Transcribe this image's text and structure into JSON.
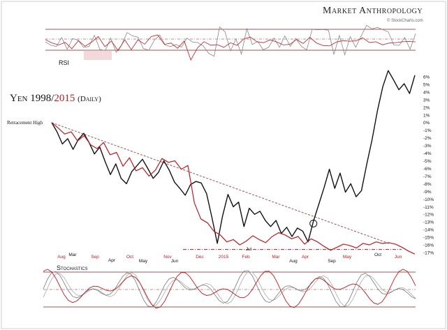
{
  "brand": {
    "name": "Market Anthropology",
    "source": "© StockCharts.com"
  },
  "title": {
    "part1": "Yen 1998/",
    "part2": "2015",
    "part3": "(Daily)"
  },
  "chart_data": {
    "type": "line",
    "panels": [
      "RSI",
      "Price",
      "Stochastics"
    ],
    "rsi_label": "RSI",
    "stoch_label": "Stochastics",
    "annotation": "Retracement High",
    "y_axis": {
      "label": "",
      "ticks": [
        "6%",
        "5%",
        "4%",
        "3%",
        "2%",
        "1%",
        "0%",
        "-1%",
        "-2%",
        "-3%",
        "-4%",
        "-5%",
        "-6%",
        "-7%",
        "-8%",
        "-9%",
        "-10%",
        "-11%",
        "-12%",
        "-13%",
        "-14%",
        "-15%",
        "-16%",
        "-17%"
      ],
      "ylim": [
        -17,
        6
      ]
    },
    "x_axis_2015_red": [
      "Aug",
      "Sep",
      "Oct",
      "Nov",
      "Dec",
      "2015",
      "Feb",
      "Mar",
      "Apr",
      "May",
      "Jun"
    ],
    "x_axis_1998_black": [
      "Mar",
      "Apr",
      "May",
      "Jun",
      "Jul",
      "Aug",
      "Sep",
      "Oct"
    ],
    "colors": {
      "series_1998": "#111111",
      "series_2015": "#c0191e",
      "grid": "#8b1a1a",
      "trend": "#a05050"
    },
    "series": [
      {
        "name": "1998",
        "values": [
          0,
          -1.2,
          -2.8,
          -2.1,
          -3.5,
          -2.2,
          -1.4,
          -2.6,
          -4.1,
          -3.2,
          -5.1,
          -6.8,
          -5.4,
          -7.3,
          -8.0,
          -6.4,
          -5.6,
          -4.8,
          -6.0,
          -7.3,
          -6.5,
          -5.0,
          -6.2,
          -7.8,
          -8.6,
          -9.5,
          -8.1,
          -7.7,
          -7.9,
          -9.3,
          -12.4,
          -15.8,
          -12.2,
          -9.4,
          -11.0,
          -10.4,
          -13.6,
          -11.2,
          -12.0,
          -11.6,
          -12.8,
          -13.6,
          -12.8,
          -14.5,
          -13.7,
          -14.9,
          -13.8,
          -14.2,
          -15.6,
          -12.9,
          -10.7,
          -8.5,
          -6.1,
          -8.6,
          -6.6,
          -9.1,
          -8.0,
          -9.7,
          -8.9,
          -5.4,
          -2.2,
          1.6,
          4.7,
          6.8,
          5.6,
          4.3,
          5.1,
          3.8,
          6.2
        ]
      },
      {
        "name": "2015",
        "values": [
          0,
          -0.7,
          -1.5,
          -1.2,
          -2.4,
          -1.7,
          -2.9,
          -3.4,
          -2.6,
          -4.2,
          -3.9,
          -5.7,
          -4.6,
          -6.3,
          -5.9,
          -7.0,
          -6.2,
          -4.7,
          -5.2,
          -5.0,
          -6.1,
          -5.6,
          -10.5,
          -12.6,
          -13.1,
          -14.2,
          -14.7,
          -15.6,
          -15.3,
          -16.0,
          -15.5,
          -14.8,
          -15.3,
          -15.7,
          -14.9,
          -14.4,
          -14.7,
          -15.2,
          -14.9,
          -15.9,
          -15.2,
          -15.6,
          -16.2,
          -16.7,
          -16.3,
          -15.9,
          -16.1,
          -16.4,
          -15.8,
          -16.0,
          -15.6,
          -15.8,
          -15.7,
          -15.9,
          -16.3,
          -16.8,
          -17.2
        ]
      }
    ],
    "trendline": {
      "from": {
        "x": 0,
        "y": 0
      },
      "to": {
        "x": 52,
        "y": -15.8
      }
    },
    "support_level": -16.6
  }
}
